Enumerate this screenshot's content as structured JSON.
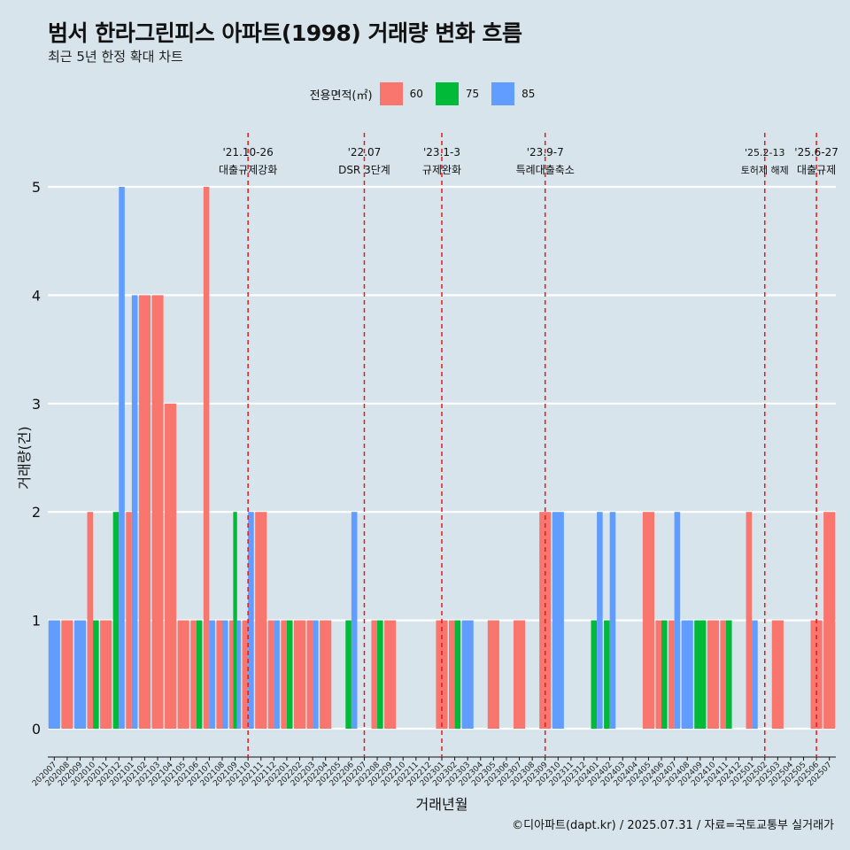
{
  "title": "범서 한라그린피스 아파트(1998) 거래량 변화 흐름",
  "subtitle": "최근 5년 한정 확대 차트",
  "caption": "©디아파트(dapt.kr) / 2025.07.31 / 자료=국토교통부 실거래가",
  "legend_title": "전용면적(㎡)",
  "colors": {
    "60": "#f8766d",
    "75": "#00ba38",
    "85": "#619cff",
    "event": "#e41a1c"
  },
  "chart_data": {
    "type": "bar",
    "xlabel": "거래년월",
    "ylabel": "거래량(건)",
    "ylim": [
      0,
      5
    ],
    "yticks": [
      0,
      1,
      2,
      3,
      4,
      5
    ],
    "categories": [
      "202007",
      "202008",
      "202009",
      "202010",
      "202011",
      "202012",
      "202101",
      "202102",
      "202103",
      "202104",
      "202105",
      "202106",
      "202107",
      "202108",
      "202109",
      "202110",
      "202111",
      "202112",
      "202201",
      "202202",
      "202203",
      "202204",
      "202205",
      "202206",
      "202207",
      "202208",
      "202209",
      "202210",
      "202211",
      "202212",
      "202301",
      "202302",
      "202303",
      "202304",
      "202305",
      "202306",
      "202307",
      "202308",
      "202309",
      "202310",
      "202311",
      "202312",
      "202401",
      "202402",
      "202403",
      "202404",
      "202405",
      "202406",
      "202407",
      "202408",
      "202409",
      "202410",
      "202411",
      "202412",
      "202501",
      "202502",
      "202503",
      "202504",
      "202505",
      "202506",
      "202507"
    ],
    "series": [
      {
        "name": "60",
        "values": [
          0,
          1,
          0,
          2,
          1,
          0,
          2,
          4,
          4,
          3,
          1,
          1,
          5,
          1,
          1,
          1,
          2,
          1,
          1,
          1,
          1,
          1,
          0,
          0,
          0,
          1,
          1,
          0,
          0,
          0,
          1,
          1,
          0,
          0,
          1,
          0,
          1,
          0,
          2,
          0,
          0,
          0,
          0,
          0,
          0,
          0,
          2,
          1,
          1,
          0,
          0,
          1,
          1,
          0,
          2,
          0,
          1,
          0,
          0,
          1,
          2
        ]
      },
      {
        "name": "75",
        "values": [
          0,
          0,
          0,
          1,
          0,
          2,
          0,
          0,
          0,
          0,
          0,
          1,
          0,
          0,
          2,
          0,
          0,
          0,
          1,
          0,
          0,
          0,
          0,
          1,
          0,
          1,
          0,
          0,
          0,
          0,
          0,
          1,
          0,
          0,
          0,
          0,
          0,
          0,
          0,
          0,
          0,
          0,
          1,
          1,
          0,
          0,
          0,
          1,
          0,
          0,
          1,
          0,
          1,
          0,
          0,
          0,
          0,
          0,
          0,
          0,
          0
        ]
      },
      {
        "name": "85",
        "values": [
          1,
          0,
          1,
          0,
          0,
          5,
          4,
          0,
          0,
          0,
          0,
          0,
          1,
          1,
          1,
          2,
          0,
          1,
          0,
          0,
          1,
          0,
          0,
          2,
          0,
          0,
          0,
          0,
          0,
          0,
          0,
          0,
          1,
          0,
          0,
          0,
          0,
          0,
          0,
          2,
          0,
          0,
          2,
          2,
          0,
          0,
          0,
          0,
          2,
          1,
          0,
          0,
          0,
          0,
          1,
          0,
          0,
          0,
          0,
          0,
          0
        ]
      }
    ],
    "events": [
      {
        "x": "202110",
        "date": "'21.10-26",
        "label": "대출규제강화"
      },
      {
        "x": "202207",
        "date": "'22.07",
        "label": "DSR 3단계"
      },
      {
        "x": "202301",
        "date": "'23.1-3",
        "label": "규제완화"
      },
      {
        "x": "202309",
        "date": "'23.9-7",
        "label": "특례대출축소"
      },
      {
        "x": "202502",
        "date": "'25.2-13",
        "label": "토허제 해제"
      },
      {
        "x": "202506",
        "date": "'25.6-27",
        "label": "대출규제"
      }
    ]
  }
}
